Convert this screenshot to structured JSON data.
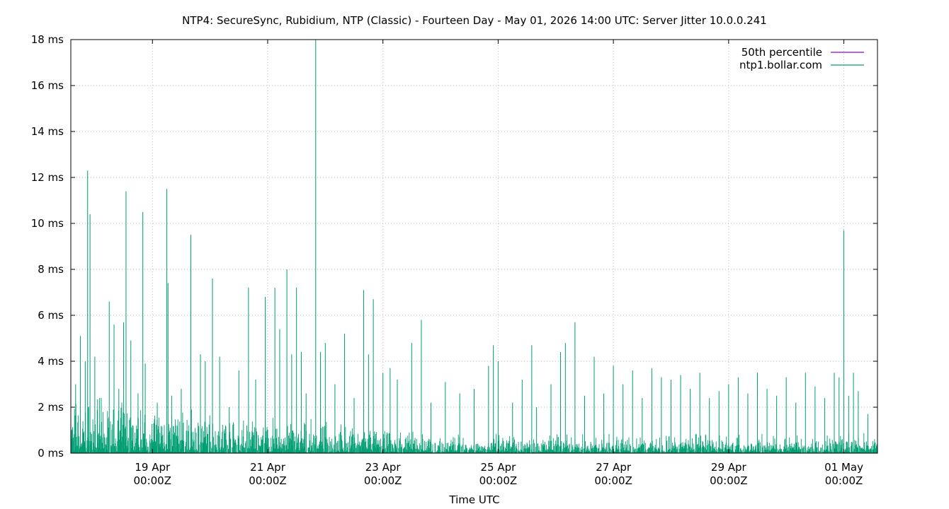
{
  "chart_data": {
    "type": "line",
    "title": "NTP4: SecureSync, Rubidium, NTP (Classic) - Fourteen Day - May 01, 2026 14:00 UTC: Server Jitter 10.0.0.241",
    "xlabel": "Time UTC",
    "ylabel": "",
    "ylim": [
      0,
      18
    ],
    "y_unit": "ms",
    "y_ticks": [
      "0 ms",
      "2 ms",
      "4 ms",
      "6 ms",
      "8 ms",
      "10 ms",
      "12 ms",
      "14 ms",
      "16 ms",
      "18 ms"
    ],
    "x_ticks": [
      {
        "date": "2026-04-19",
        "line1": "19 Apr",
        "line2": "00:00Z"
      },
      {
        "date": "2026-04-21",
        "line1": "21 Apr",
        "line2": "00:00Z"
      },
      {
        "date": "2026-04-23",
        "line1": "23 Apr",
        "line2": "00:00Z"
      },
      {
        "date": "2026-04-25",
        "line1": "25 Apr",
        "line2": "00:00Z"
      },
      {
        "date": "2026-04-27",
        "line1": "27 Apr",
        "line2": "00:00Z"
      },
      {
        "date": "2026-04-29",
        "line1": "29 Apr",
        "line2": "00:00Z"
      },
      {
        "date": "2026-05-01",
        "line1": "01 May",
        "line2": "00:00Z"
      }
    ],
    "xlim": [
      "2026-04-17T14:00Z",
      "2026-05-01T14:00Z"
    ],
    "grid": true,
    "legend_position": "top-right",
    "series": [
      {
        "name": "50th percentile",
        "color": "#9400d3",
        "points": []
      },
      {
        "name": "ntp1.bollar.com",
        "color": "#009e73",
        "points": [
          [
            "2026-04-17T14:00Z",
            2.5
          ],
          [
            "2026-04-17T16:00Z",
            3.0
          ],
          [
            "2026-04-17T18:00Z",
            5.1
          ],
          [
            "2026-04-17T20:00Z",
            4.0
          ],
          [
            "2026-04-17T21:00Z",
            12.3
          ],
          [
            "2026-04-17T22:00Z",
            10.4
          ],
          [
            "2026-04-18T00:00Z",
            4.2
          ],
          [
            "2026-04-18T02:00Z",
            2.4
          ],
          [
            "2026-04-18T06:00Z",
            6.6
          ],
          [
            "2026-04-18T08:00Z",
            5.6
          ],
          [
            "2026-04-18T10:00Z",
            2.8
          ],
          [
            "2026-04-18T12:00Z",
            5.7
          ],
          [
            "2026-04-18T13:00Z",
            11.4
          ],
          [
            "2026-04-18T15:00Z",
            4.9
          ],
          [
            "2026-04-18T18:00Z",
            2.6
          ],
          [
            "2026-04-18T20:00Z",
            10.5
          ],
          [
            "2026-04-18T21:00Z",
            3.9
          ],
          [
            "2026-04-19T02:00Z",
            2.2
          ],
          [
            "2026-04-19T06:00Z",
            11.5
          ],
          [
            "2026-04-19T06:30Z",
            7.4
          ],
          [
            "2026-04-19T08:00Z",
            2.5
          ],
          [
            "2026-04-19T12:00Z",
            2.8
          ],
          [
            "2026-04-19T16:00Z",
            9.5
          ],
          [
            "2026-04-19T20:00Z",
            4.3
          ],
          [
            "2026-04-19T22:00Z",
            4.0
          ],
          [
            "2026-04-20T01:00Z",
            7.6
          ],
          [
            "2026-04-20T04:00Z",
            4.2
          ],
          [
            "2026-04-20T08:00Z",
            2.0
          ],
          [
            "2026-04-20T12:00Z",
            3.6
          ],
          [
            "2026-04-20T16:00Z",
            7.2
          ],
          [
            "2026-04-20T19:00Z",
            3.2
          ],
          [
            "2026-04-20T23:00Z",
            6.8
          ],
          [
            "2026-04-21T03:00Z",
            7.2
          ],
          [
            "2026-04-21T05:00Z",
            5.4
          ],
          [
            "2026-04-21T08:00Z",
            8.0
          ],
          [
            "2026-04-21T10:00Z",
            4.3
          ],
          [
            "2026-04-21T12:00Z",
            7.2
          ],
          [
            "2026-04-21T14:00Z",
            4.4
          ],
          [
            "2026-04-21T16:00Z",
            2.6
          ],
          [
            "2026-04-21T20:00Z",
            18.0
          ],
          [
            "2026-04-21T22:00Z",
            4.4
          ],
          [
            "2026-04-22T00:00Z",
            4.8
          ],
          [
            "2026-04-22T04:00Z",
            3.0
          ],
          [
            "2026-04-22T08:00Z",
            5.2
          ],
          [
            "2026-04-22T12:00Z",
            2.4
          ],
          [
            "2026-04-22T16:00Z",
            7.1
          ],
          [
            "2026-04-22T18:00Z",
            4.3
          ],
          [
            "2026-04-22T20:00Z",
            6.7
          ],
          [
            "2026-04-23T00:00Z",
            3.5
          ],
          [
            "2026-04-23T03:00Z",
            3.7
          ],
          [
            "2026-04-23T06:00Z",
            3.2
          ],
          [
            "2026-04-23T12:00Z",
            4.8
          ],
          [
            "2026-04-23T16:00Z",
            5.8
          ],
          [
            "2026-04-23T20:00Z",
            2.2
          ],
          [
            "2026-04-24T02:00Z",
            3.1
          ],
          [
            "2026-04-24T08:00Z",
            2.6
          ],
          [
            "2026-04-24T14:00Z",
            2.8
          ],
          [
            "2026-04-24T20:00Z",
            3.8
          ],
          [
            "2026-04-24T22:00Z",
            4.7
          ],
          [
            "2026-04-25T00:00Z",
            4.0
          ],
          [
            "2026-04-25T06:00Z",
            2.2
          ],
          [
            "2026-04-25T10:00Z",
            3.2
          ],
          [
            "2026-04-25T14:00Z",
            4.7
          ],
          [
            "2026-04-25T16:00Z",
            2.0
          ],
          [
            "2026-04-25T22:00Z",
            3.0
          ],
          [
            "2026-04-26T02:00Z",
            4.4
          ],
          [
            "2026-04-26T04:00Z",
            4.8
          ],
          [
            "2026-04-26T08:00Z",
            5.7
          ],
          [
            "2026-04-26T12:00Z",
            2.5
          ],
          [
            "2026-04-26T16:00Z",
            4.2
          ],
          [
            "2026-04-26T20:00Z",
            2.6
          ],
          [
            "2026-04-27T00:00Z",
            3.8
          ],
          [
            "2026-04-27T04:00Z",
            3.0
          ],
          [
            "2026-04-27T08:00Z",
            3.6
          ],
          [
            "2026-04-27T12:00Z",
            2.4
          ],
          [
            "2026-04-27T16:00Z",
            3.7
          ],
          [
            "2026-04-27T20:00Z",
            3.3
          ],
          [
            "2026-04-28T00:00Z",
            3.2
          ],
          [
            "2026-04-28T04:00Z",
            3.4
          ],
          [
            "2026-04-28T08:00Z",
            2.8
          ],
          [
            "2026-04-28T12:00Z",
            3.5
          ],
          [
            "2026-04-28T16:00Z",
            2.4
          ],
          [
            "2026-04-28T20:00Z",
            2.7
          ],
          [
            "2026-04-29T00:00Z",
            3.0
          ],
          [
            "2026-04-29T04:00Z",
            3.3
          ],
          [
            "2026-04-29T08:00Z",
            2.6
          ],
          [
            "2026-04-29T12:00Z",
            3.5
          ],
          [
            "2026-04-29T16:00Z",
            2.8
          ],
          [
            "2026-04-29T20:00Z",
            2.5
          ],
          [
            "2026-04-30T00:00Z",
            3.3
          ],
          [
            "2026-04-30T04:00Z",
            2.2
          ],
          [
            "2026-04-30T08:00Z",
            3.5
          ],
          [
            "2026-04-30T12:00Z",
            2.9
          ],
          [
            "2026-04-30T16:00Z",
            2.4
          ],
          [
            "2026-04-30T20:00Z",
            3.5
          ],
          [
            "2026-04-30T22:00Z",
            3.3
          ],
          [
            "2026-05-01T00:00Z",
            9.7
          ],
          [
            "2026-05-01T02:00Z",
            2.5
          ],
          [
            "2026-05-01T04:00Z",
            3.5
          ],
          [
            "2026-05-01T06:00Z",
            2.7
          ],
          [
            "2026-05-01T10:00Z",
            1.7
          ],
          [
            "2026-05-01T14:00Z",
            1.4
          ]
        ]
      }
    ]
  }
}
